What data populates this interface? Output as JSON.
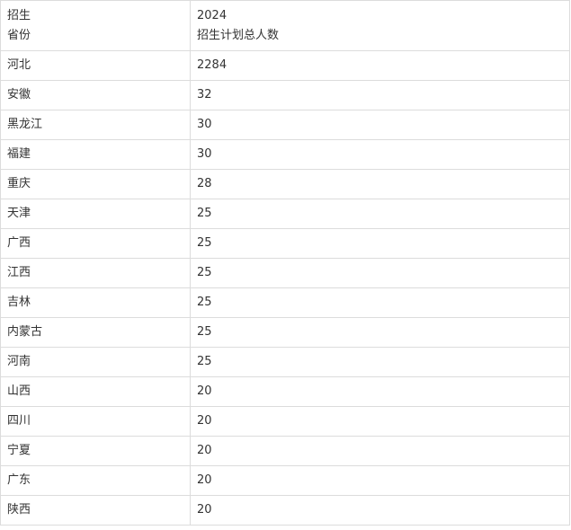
{
  "header": {
    "col1": [
      "招生",
      "省份"
    ],
    "col2": [
      "2024",
      "招生计划总人数"
    ]
  },
  "rows": [
    {
      "province": "河北",
      "count": "2284"
    },
    {
      "province": "安徽",
      "count": "32"
    },
    {
      "province": "黑龙江",
      "count": "30"
    },
    {
      "province": "福建",
      "count": "30"
    },
    {
      "province": "重庆",
      "count": "28"
    },
    {
      "province": "天津",
      "count": "25"
    },
    {
      "province": "广西",
      "count": "25"
    },
    {
      "province": "江西",
      "count": "25"
    },
    {
      "province": "吉林",
      "count": "25"
    },
    {
      "province": "内蒙古",
      "count": "25"
    },
    {
      "province": "河南",
      "count": "25"
    },
    {
      "province": "山西",
      "count": "20"
    },
    {
      "province": "四川",
      "count": "20"
    },
    {
      "province": "宁夏",
      "count": "20"
    },
    {
      "province": "广东",
      "count": "20"
    },
    {
      "province": "陕西",
      "count": "20"
    }
  ]
}
